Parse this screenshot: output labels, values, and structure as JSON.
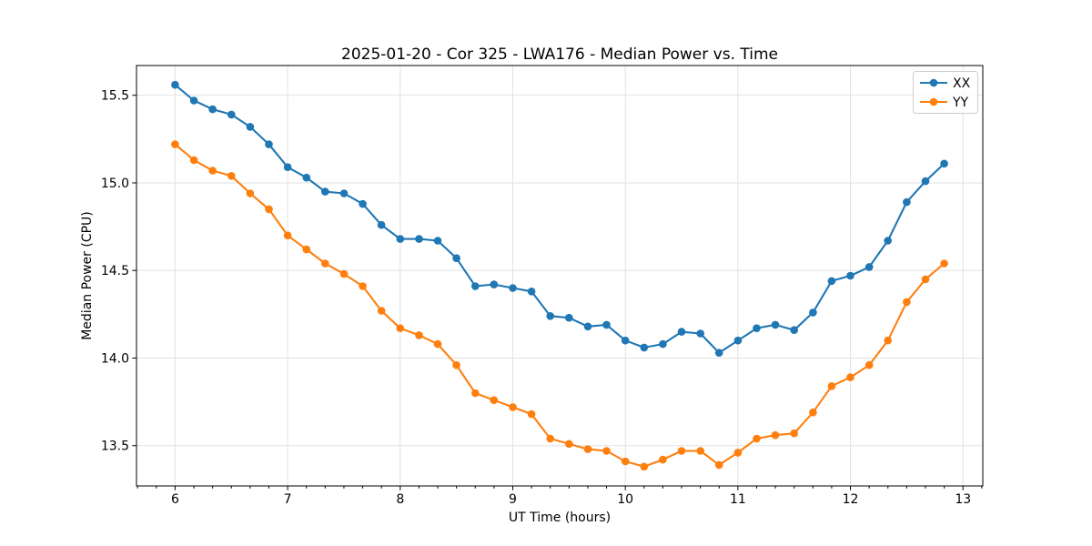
{
  "figure": {
    "background": "#ffffff"
  },
  "chart_data": {
    "type": "line",
    "title": "2025-01-20 - Cor 325 - LWA176 - Median Power vs. Time",
    "xlabel": "UT Time (hours)",
    "ylabel": "Median Power (CPU)",
    "x": [
      6.0,
      6.167,
      6.333,
      6.5,
      6.667,
      6.833,
      7.0,
      7.167,
      7.333,
      7.5,
      7.667,
      7.833,
      8.0,
      8.167,
      8.333,
      8.5,
      8.667,
      8.833,
      9.0,
      9.167,
      9.333,
      9.5,
      9.667,
      9.833,
      10.0,
      10.167,
      10.333,
      10.5,
      10.667,
      10.833,
      11.0,
      11.167,
      11.333,
      11.5,
      11.667,
      11.833,
      12.0,
      12.167,
      12.333,
      12.5,
      12.667,
      12.833
    ],
    "series": [
      {
        "name": "XX",
        "color": "#1f77b4",
        "marker": "circle",
        "values": [
          15.56,
          15.47,
          15.42,
          15.39,
          15.32,
          15.22,
          15.09,
          15.03,
          14.95,
          14.94,
          14.88,
          14.76,
          14.68,
          14.68,
          14.67,
          14.57,
          14.41,
          14.42,
          14.4,
          14.38,
          14.24,
          14.23,
          14.18,
          14.19,
          14.1,
          14.06,
          14.08,
          14.15,
          14.14,
          14.03,
          14.1,
          14.17,
          14.19,
          14.16,
          14.26,
          14.44,
          14.47,
          14.52,
          14.67,
          14.89,
          15.01,
          15.11
        ]
      },
      {
        "name": "YY",
        "color": "#ff7f0e",
        "marker": "circle",
        "values": [
          15.22,
          15.13,
          15.07,
          15.04,
          14.94,
          14.85,
          14.7,
          14.62,
          14.54,
          14.48,
          14.41,
          14.27,
          14.17,
          14.13,
          14.08,
          13.96,
          13.8,
          13.76,
          13.72,
          13.68,
          13.54,
          13.51,
          13.48,
          13.47,
          13.41,
          13.38,
          13.42,
          13.47,
          13.47,
          13.39,
          13.46,
          13.54,
          13.56,
          13.57,
          13.69,
          13.84,
          13.89,
          13.96,
          14.1,
          14.32,
          14.45,
          14.54
        ]
      }
    ],
    "xlim": [
      5.657,
      13.176
    ],
    "ylim": [
      13.27,
      15.67
    ],
    "xticks": [
      6,
      7,
      8,
      9,
      10,
      11,
      12,
      13
    ],
    "xtick_labels": [
      "6",
      "7",
      "8",
      "9",
      "10",
      "11",
      "12",
      "13"
    ],
    "x_minor_tick_interval": 0.16667,
    "yticks": [
      13.5,
      14.0,
      14.5,
      15.0,
      15.5
    ],
    "ytick_labels": [
      "13.5",
      "14.0",
      "14.5",
      "15.0",
      "15.5"
    ],
    "grid": true,
    "legend": {
      "position": "upper right",
      "entries": [
        "XX",
        "YY"
      ]
    }
  },
  "colors": {
    "grid": "#e2e2e2",
    "spine": "#000000",
    "tick": "#000000",
    "legend_border": "#cccccc",
    "legend_background": "#ffffff"
  }
}
